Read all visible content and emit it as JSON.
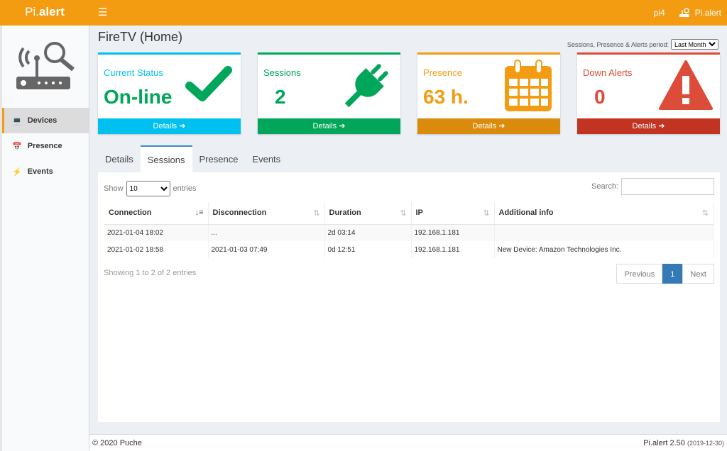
{
  "header": {
    "logo_prefix": "Pi.",
    "logo_bold": "alert",
    "menu_icon": "hamburger-icon",
    "host": "pi4",
    "app_name": "Pi.alert"
  },
  "sidebar": {
    "items": [
      {
        "label": "Devices",
        "icon": "laptop-icon",
        "active": true
      },
      {
        "label": "Presence",
        "icon": "calendar-icon"
      },
      {
        "label": "Events",
        "icon": "bolt-icon"
      }
    ]
  },
  "page": {
    "title": "FireTV (Home)",
    "period_label": "Sessions, Presence & Alerts period:",
    "period_value": "Last Month"
  },
  "cards": [
    {
      "label": "Current Status",
      "value": "On-line",
      "details": "Details",
      "color": "#00a65a",
      "accent": "#00c0ef"
    },
    {
      "label": "Sessions",
      "value": "2",
      "details": "Details",
      "color": "#00a65a",
      "accent": "#00a65a"
    },
    {
      "label": "Presence",
      "value": "63 h.",
      "details": "Details",
      "color": "#f39c12",
      "accent": "#f39c12"
    },
    {
      "label": "Down Alerts",
      "value": "0",
      "details": "Details",
      "color": "#dd4b39",
      "accent": "#dd4b39"
    }
  ],
  "tabs": [
    "Details",
    "Sessions",
    "Presence",
    "Events"
  ],
  "table": {
    "show": "Show",
    "entries_value": "10",
    "entries": "entries",
    "search_label": "Search:",
    "search_value": "",
    "columns": [
      "Connection",
      "Disconnection",
      "Duration",
      "IP",
      "Additional info"
    ],
    "rows": [
      [
        "2021-01-04  18:02",
        "...",
        "2d  03:14",
        "192.168.1.181",
        ""
      ],
      [
        "2021-01-02  18:58",
        "2021-01-03  07:49",
        "0d  12:51",
        "192.168.1.181",
        "New Device:  Amazon Technologies Inc."
      ]
    ],
    "info": "Showing 1 to 2 of 2 entries",
    "pager": {
      "previous": "Previous",
      "current": "1",
      "next": "Next"
    }
  },
  "footer": {
    "copyright": "© 2020 Puche",
    "version": "Pi.alert  2.50",
    "date": "(2019-12-30)"
  }
}
